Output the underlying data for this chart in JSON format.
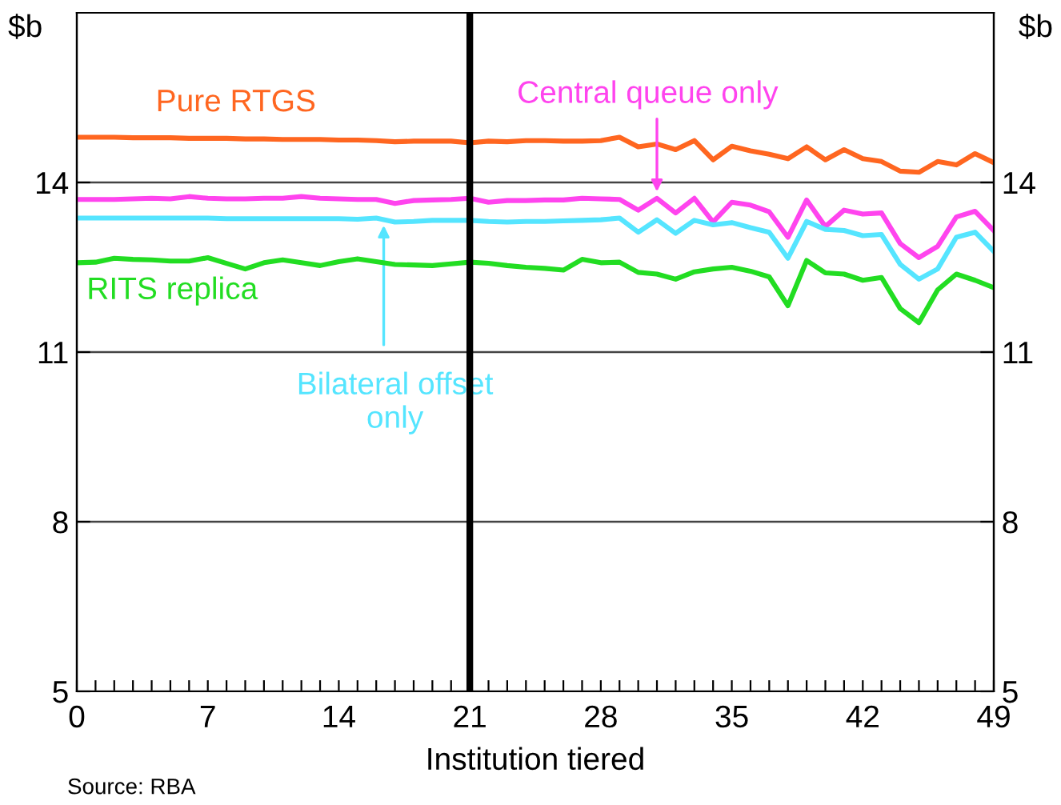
{
  "chart_data": {
    "type": "line",
    "ylabel": "$b",
    "y2label": "$b",
    "xlabel": "Institution tiered",
    "x": [
      0,
      1,
      2,
      3,
      4,
      5,
      6,
      7,
      8,
      9,
      10,
      11,
      12,
      13,
      14,
      15,
      16,
      17,
      18,
      19,
      20,
      21,
      22,
      23,
      24,
      25,
      26,
      27,
      28,
      29,
      30,
      31,
      32,
      33,
      34,
      35,
      36,
      37,
      38,
      39,
      40,
      41,
      42,
      43,
      44,
      45,
      46,
      47,
      48,
      49
    ],
    "series": [
      {
        "name": "Pure RTGS",
        "color": "#ff6620",
        "values": [
          14.8,
          14.8,
          14.8,
          14.79,
          14.79,
          14.79,
          14.78,
          14.78,
          14.78,
          14.77,
          14.77,
          14.76,
          14.76,
          14.76,
          14.75,
          14.75,
          14.74,
          14.72,
          14.73,
          14.73,
          14.73,
          14.7,
          14.73,
          14.72,
          14.74,
          14.74,
          14.73,
          14.73,
          14.74,
          14.8,
          14.63,
          14.68,
          14.58,
          14.74,
          14.4,
          14.64,
          14.56,
          14.5,
          14.42,
          14.63,
          14.4,
          14.58,
          14.42,
          14.37,
          14.2,
          14.18,
          14.37,
          14.31,
          14.51,
          14.35
        ]
      },
      {
        "name": "Central queue only",
        "color": "#ff44ee",
        "values": [
          13.7,
          13.7,
          13.7,
          13.71,
          13.72,
          13.71,
          13.75,
          13.72,
          13.71,
          13.71,
          13.72,
          13.72,
          13.75,
          13.72,
          13.71,
          13.7,
          13.7,
          13.63,
          13.68,
          13.69,
          13.7,
          13.72,
          13.65,
          13.68,
          13.68,
          13.69,
          13.69,
          13.72,
          13.71,
          13.7,
          13.51,
          13.72,
          13.46,
          13.72,
          13.3,
          13.65,
          13.6,
          13.48,
          13.03,
          13.69,
          13.22,
          13.51,
          13.44,
          13.46,
          12.92,
          12.67,
          12.87,
          13.39,
          13.49,
          13.15
        ]
      },
      {
        "name": "Bilateral offset only",
        "color": "#55e5ff",
        "values": [
          13.37,
          13.37,
          13.37,
          13.37,
          13.37,
          13.37,
          13.37,
          13.37,
          13.36,
          13.36,
          13.36,
          13.36,
          13.36,
          13.36,
          13.36,
          13.35,
          13.37,
          13.3,
          13.31,
          13.33,
          13.33,
          13.33,
          13.31,
          13.3,
          13.31,
          13.31,
          13.32,
          13.33,
          13.34,
          13.37,
          13.12,
          13.34,
          13.1,
          13.33,
          13.25,
          13.29,
          13.2,
          13.12,
          12.66,
          13.31,
          13.17,
          13.15,
          13.06,
          13.08,
          12.55,
          12.29,
          12.47,
          13.03,
          13.12,
          12.78
        ]
      },
      {
        "name": "RITS replica",
        "color": "#22dd22",
        "values": [
          12.58,
          12.59,
          12.66,
          12.64,
          12.63,
          12.61,
          12.61,
          12.67,
          12.57,
          12.47,
          12.58,
          12.63,
          12.58,
          12.53,
          12.6,
          12.65,
          12.6,
          12.55,
          12.54,
          12.53,
          12.56,
          12.59,
          12.57,
          12.53,
          12.5,
          12.48,
          12.45,
          12.64,
          12.58,
          12.59,
          12.41,
          12.38,
          12.29,
          12.42,
          12.47,
          12.5,
          12.43,
          12.33,
          11.82,
          12.62,
          12.4,
          12.38,
          12.27,
          12.32,
          11.77,
          11.52,
          12.1,
          12.38,
          12.27,
          12.14
        ]
      }
    ],
    "xlim": [
      0,
      49
    ],
    "xticks": [
      0,
      {
        "value": 1,
        "label": null
      },
      {
        "value": 2,
        "label": null
      },
      {
        "value": 3,
        "label": null
      },
      {
        "value": 4,
        "label": null
      },
      {
        "value": 5,
        "label": null
      },
      {
        "value": 6,
        "label": null
      },
      7,
      {
        "value": 8,
        "label": null
      },
      {
        "value": 9,
        "label": null
      },
      {
        "value": 10,
        "label": null
      },
      {
        "value": 11,
        "label": null
      },
      {
        "value": 12,
        "label": null
      },
      {
        "value": 13,
        "label": null
      },
      14,
      {
        "value": 15,
        "label": null
      },
      {
        "value": 16,
        "label": null
      },
      {
        "value": 17,
        "label": null
      },
      {
        "value": 18,
        "label": null
      },
      {
        "value": 19,
        "label": null
      },
      {
        "value": 20,
        "label": null
      },
      21,
      {
        "value": 22,
        "label": null
      },
      {
        "value": 23,
        "label": null
      },
      {
        "value": 24,
        "label": null
      },
      {
        "value": 25,
        "label": null
      },
      {
        "value": 26,
        "label": null
      },
      {
        "value": 27,
        "label": null
      },
      28,
      {
        "value": 29,
        "label": null
      },
      {
        "value": 30,
        "label": null
      },
      {
        "value": 31,
        "label": null
      },
      {
        "value": 32,
        "label": null
      },
      {
        "value": 33,
        "label": null
      },
      {
        "value": 34,
        "label": null
      },
      35,
      {
        "value": 36,
        "label": null
      },
      {
        "value": 37,
        "label": null
      },
      {
        "value": 38,
        "label": null
      },
      {
        "value": 39,
        "label": null
      },
      {
        "value": 40,
        "label": null
      },
      {
        "value": 41,
        "label": null
      },
      42,
      {
        "value": 43,
        "label": null
      },
      {
        "value": 44,
        "label": null
      },
      {
        "value": 45,
        "label": null
      },
      {
        "value": 46,
        "label": null
      },
      {
        "value": 47,
        "label": null
      },
      {
        "value": 48,
        "label": null
      },
      49
    ],
    "ylim": [
      5,
      17
    ],
    "yticks": [
      5,
      8,
      11,
      14
    ],
    "y2lim": [
      5,
      17
    ],
    "y2ticks": [
      5,
      8,
      11,
      14
    ],
    "grid": "y",
    "legend": false,
    "marker": "none",
    "line_style": "solid",
    "ref_lines": [
      {
        "axis": "x",
        "value": 21,
        "color": "#000000",
        "line_style": "solid"
      }
    ],
    "annotations": [
      "Source: RBA"
    ]
  }
}
